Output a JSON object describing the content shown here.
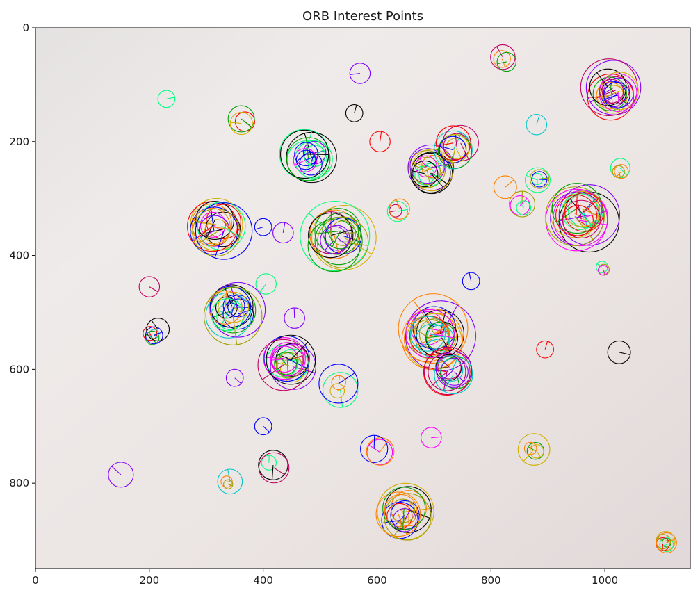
{
  "chart_data": {
    "type": "scatter",
    "title": "ORB Interest Points",
    "xlabel": "",
    "ylabel": "",
    "xlim": [
      0,
      1150
    ],
    "ylim": [
      950,
      0
    ],
    "x_ticks": [
      0,
      200,
      400,
      600,
      800,
      1000
    ],
    "y_ticks": [
      0,
      200,
      400,
      600,
      800
    ],
    "grid": false,
    "image_background": "#ebe5e3",
    "keypoint_colors": [
      "#ff0000",
      "#00a000",
      "#0000ff",
      "#ff00ff",
      "#00c8c8",
      "#d0b000",
      "#ff8000",
      "#8000ff",
      "#000000",
      "#00ff80",
      "#a0a000",
      "#c00060"
    ],
    "keypoint_clusters": [
      {
        "x": 1015,
        "y": 115,
        "r": 52,
        "n": 14
      },
      {
        "x": 960,
        "y": 330,
        "r": 58,
        "n": 16
      },
      {
        "x": 700,
        "y": 540,
        "r": 62,
        "n": 18
      },
      {
        "x": 730,
        "y": 600,
        "r": 45,
        "n": 10
      },
      {
        "x": 530,
        "y": 370,
        "r": 62,
        "n": 14
      },
      {
        "x": 320,
        "y": 350,
        "r": 52,
        "n": 14
      },
      {
        "x": 345,
        "y": 500,
        "r": 52,
        "n": 14
      },
      {
        "x": 445,
        "y": 590,
        "r": 50,
        "n": 14
      },
      {
        "x": 480,
        "y": 230,
        "r": 48,
        "n": 12
      },
      {
        "x": 690,
        "y": 250,
        "r": 42,
        "n": 12
      },
      {
        "x": 740,
        "y": 210,
        "r": 35,
        "n": 8
      },
      {
        "x": 645,
        "y": 855,
        "r": 50,
        "n": 12
      },
      {
        "x": 1105,
        "y": 905,
        "r": 20,
        "n": 6
      },
      {
        "x": 530,
        "y": 630,
        "r": 35,
        "n": 4
      },
      {
        "x": 340,
        "y": 800,
        "r": 22,
        "n": 3
      },
      {
        "x": 600,
        "y": 745,
        "r": 25,
        "n": 3
      },
      {
        "x": 415,
        "y": 770,
        "r": 28,
        "n": 3
      },
      {
        "x": 875,
        "y": 740,
        "r": 30,
        "n": 4
      },
      {
        "x": 880,
        "y": 270,
        "r": 25,
        "n": 4
      },
      {
        "x": 855,
        "y": 315,
        "r": 25,
        "n": 3
      },
      {
        "x": 1025,
        "y": 250,
        "r": 20,
        "n": 3
      },
      {
        "x": 995,
        "y": 425,
        "r": 22,
        "n": 3
      },
      {
        "x": 205,
        "y": 540,
        "r": 22,
        "n": 4
      },
      {
        "x": 635,
        "y": 320,
        "r": 22,
        "n": 3
      },
      {
        "x": 365,
        "y": 165,
        "r": 25,
        "n": 3
      },
      {
        "x": 825,
        "y": 55,
        "r": 25,
        "n": 3
      }
    ],
    "keypoint_singles": [
      {
        "x": 230,
        "y": 125,
        "r": 15
      },
      {
        "x": 570,
        "y": 80,
        "r": 18
      },
      {
        "x": 560,
        "y": 150,
        "r": 15
      },
      {
        "x": 605,
        "y": 200,
        "r": 18
      },
      {
        "x": 880,
        "y": 170,
        "r": 18
      },
      {
        "x": 825,
        "y": 280,
        "r": 20
      },
      {
        "x": 400,
        "y": 350,
        "r": 15
      },
      {
        "x": 435,
        "y": 360,
        "r": 18
      },
      {
        "x": 200,
        "y": 455,
        "r": 18
      },
      {
        "x": 405,
        "y": 450,
        "r": 18
      },
      {
        "x": 455,
        "y": 510,
        "r": 18
      },
      {
        "x": 765,
        "y": 445,
        "r": 15
      },
      {
        "x": 895,
        "y": 565,
        "r": 15
      },
      {
        "x": 1025,
        "y": 570,
        "r": 20
      },
      {
        "x": 350,
        "y": 615,
        "r": 15
      },
      {
        "x": 400,
        "y": 700,
        "r": 15
      },
      {
        "x": 695,
        "y": 720,
        "r": 18
      },
      {
        "x": 150,
        "y": 785,
        "r": 22
      },
      {
        "x": 215,
        "y": 530,
        "r": 20
      }
    ]
  }
}
